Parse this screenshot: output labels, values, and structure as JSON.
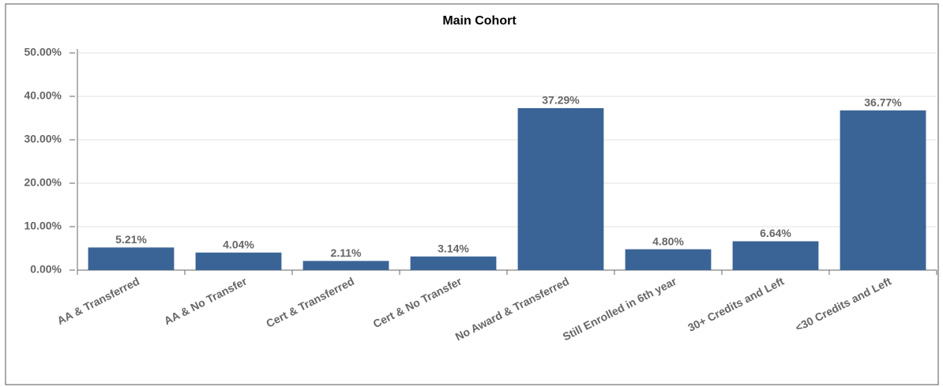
{
  "chart_data": {
    "type": "bar",
    "title": "Main Cohort",
    "categories": [
      "AA & Transferred",
      "AA & No Transfer",
      "Cert & Transferred",
      "Cert & No Transfer",
      "No Award & Transferred",
      "Still Enrolled in 6th year",
      "30+ Credits and Left",
      "<30 Credits and Left"
    ],
    "values": [
      5.21,
      4.04,
      2.11,
      3.14,
      37.29,
      4.8,
      6.64,
      36.77
    ],
    "value_labels": [
      "5.21%",
      "4.04%",
      "2.11%",
      "3.14%",
      "37.29%",
      "4.80%",
      "6.64%",
      "36.77%"
    ],
    "color": "#3a6496",
    "ylim": [
      0,
      50
    ],
    "yticks": [
      {
        "value": 0,
        "label": "0.00%"
      },
      {
        "value": 10,
        "label": "10.00%"
      },
      {
        "value": 20,
        "label": "20.00%"
      },
      {
        "value": 30,
        "label": "30.00%"
      },
      {
        "value": 40,
        "label": "40.00%"
      },
      {
        "value": 50,
        "label": "50.00%"
      }
    ],
    "grid": true
  }
}
